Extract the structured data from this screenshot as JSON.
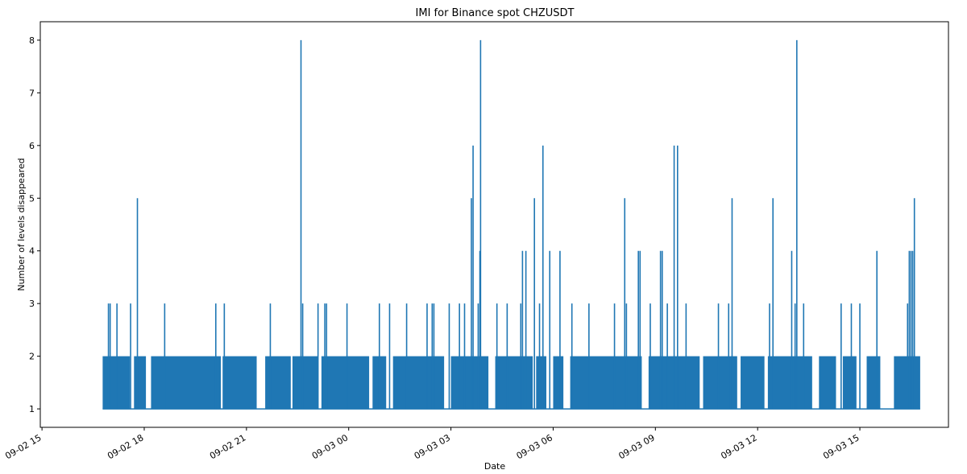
{
  "chart_data": {
    "type": "line",
    "title": "IMI for Binance spot CHZUSDT",
    "xlabel": "Date",
    "ylabel": "Number of levels disappeared",
    "series_color": "#1f77b4",
    "grid": false,
    "legend": "none",
    "x_ticks": [
      {
        "label": "09-02 15",
        "hour": 15
      },
      {
        "label": "09-02 18",
        "hour": 18
      },
      {
        "label": "09-02 21",
        "hour": 21
      },
      {
        "label": "09-03 00",
        "hour": 24
      },
      {
        "label": "09-03 03",
        "hour": 27
      },
      {
        "label": "09-03 06",
        "hour": 30
      },
      {
        "label": "09-03 09",
        "hour": 33
      },
      {
        "label": "09-03 12",
        "hour": 36
      },
      {
        "label": "09-03 15",
        "hour": 39
      }
    ],
    "xlim_hours": [
      14.95,
      41.6
    ],
    "data_range_hours": [
      16.78,
      40.77
    ],
    "y_ticks": [
      1,
      2,
      3,
      4,
      5,
      6,
      7,
      8
    ],
    "ylim": [
      0.65,
      8.35
    ],
    "baseline": 1,
    "dense_segments_to_2": [
      [
        16.78,
        17.58
      ],
      [
        17.7,
        18.05
      ],
      [
        18.2,
        20.25
      ],
      [
        20.3,
        21.3
      ],
      [
        21.55,
        22.3
      ],
      [
        22.35,
        23.1
      ],
      [
        23.2,
        24.6
      ],
      [
        24.7,
        25.1
      ],
      [
        25.3,
        26.8
      ],
      [
        27.0,
        28.1
      ],
      [
        28.3,
        29.4
      ],
      [
        29.5,
        29.8
      ],
      [
        30.0,
        30.3
      ],
      [
        30.5,
        32.6
      ],
      [
        32.8,
        34.3
      ],
      [
        34.4,
        35.4
      ],
      [
        35.5,
        36.2
      ],
      [
        36.3,
        37.6
      ],
      [
        37.8,
        38.3
      ],
      [
        38.5,
        38.9
      ],
      [
        39.2,
        39.6
      ],
      [
        40.0,
        40.77
      ]
    ],
    "spikes": [
      {
        "hour": 16.95,
        "value": 3
      },
      {
        "hour": 17.0,
        "value": 3
      },
      {
        "hour": 17.2,
        "value": 3
      },
      {
        "hour": 17.6,
        "value": 3
      },
      {
        "hour": 17.8,
        "value": 5
      },
      {
        "hour": 18.6,
        "value": 3
      },
      {
        "hour": 20.1,
        "value": 3
      },
      {
        "hour": 20.35,
        "value": 3
      },
      {
        "hour": 21.7,
        "value": 3
      },
      {
        "hour": 22.6,
        "value": 8
      },
      {
        "hour": 22.65,
        "value": 3
      },
      {
        "hour": 23.1,
        "value": 3
      },
      {
        "hour": 23.3,
        "value": 3
      },
      {
        "hour": 23.35,
        "value": 3
      },
      {
        "hour": 23.95,
        "value": 3
      },
      {
        "hour": 24.9,
        "value": 3
      },
      {
        "hour": 25.2,
        "value": 3
      },
      {
        "hour": 25.7,
        "value": 3
      },
      {
        "hour": 26.3,
        "value": 3
      },
      {
        "hour": 26.45,
        "value": 3
      },
      {
        "hour": 26.5,
        "value": 3
      },
      {
        "hour": 26.95,
        "value": 3
      },
      {
        "hour": 27.25,
        "value": 3
      },
      {
        "hour": 27.4,
        "value": 3
      },
      {
        "hour": 27.6,
        "value": 5
      },
      {
        "hour": 27.65,
        "value": 6
      },
      {
        "hour": 27.8,
        "value": 3
      },
      {
        "hour": 27.85,
        "value": 4
      },
      {
        "hour": 27.87,
        "value": 8
      },
      {
        "hour": 28.35,
        "value": 3
      },
      {
        "hour": 28.65,
        "value": 3
      },
      {
        "hour": 29.05,
        "value": 3
      },
      {
        "hour": 29.1,
        "value": 4
      },
      {
        "hour": 29.2,
        "value": 4
      },
      {
        "hour": 29.45,
        "value": 5
      },
      {
        "hour": 29.6,
        "value": 3
      },
      {
        "hour": 29.7,
        "value": 6
      },
      {
        "hour": 29.9,
        "value": 4
      },
      {
        "hour": 30.2,
        "value": 4
      },
      {
        "hour": 30.55,
        "value": 3
      },
      {
        "hour": 31.05,
        "value": 3
      },
      {
        "hour": 31.8,
        "value": 3
      },
      {
        "hour": 32.1,
        "value": 5
      },
      {
        "hour": 32.15,
        "value": 3
      },
      {
        "hour": 32.5,
        "value": 4
      },
      {
        "hour": 32.55,
        "value": 4
      },
      {
        "hour": 32.85,
        "value": 3
      },
      {
        "hour": 33.15,
        "value": 4
      },
      {
        "hour": 33.2,
        "value": 4
      },
      {
        "hour": 33.35,
        "value": 3
      },
      {
        "hour": 33.55,
        "value": 6
      },
      {
        "hour": 33.65,
        "value": 6
      },
      {
        "hour": 33.9,
        "value": 3
      },
      {
        "hour": 34.85,
        "value": 3
      },
      {
        "hour": 35.15,
        "value": 3
      },
      {
        "hour": 35.25,
        "value": 5
      },
      {
        "hour": 36.35,
        "value": 3
      },
      {
        "hour": 36.45,
        "value": 5
      },
      {
        "hour": 37.0,
        "value": 4
      },
      {
        "hour": 37.1,
        "value": 3
      },
      {
        "hour": 37.15,
        "value": 8
      },
      {
        "hour": 37.35,
        "value": 3
      },
      {
        "hour": 38.45,
        "value": 3
      },
      {
        "hour": 38.75,
        "value": 3
      },
      {
        "hour": 39.0,
        "value": 3
      },
      {
        "hour": 39.5,
        "value": 4
      },
      {
        "hour": 40.4,
        "value": 3
      },
      {
        "hour": 40.45,
        "value": 4
      },
      {
        "hour": 40.5,
        "value": 4
      },
      {
        "hour": 40.55,
        "value": 4
      },
      {
        "hour": 40.6,
        "value": 5
      }
    ]
  }
}
